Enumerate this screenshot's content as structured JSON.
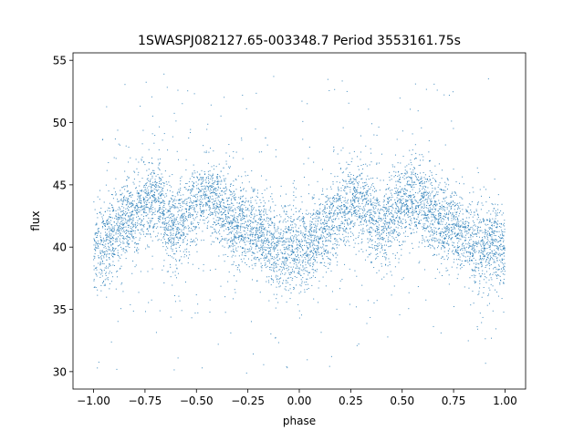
{
  "chart_data": {
    "type": "scatter",
    "title": "1SWASPJ082127.65-003348.7 Period 3553161.75s",
    "xlabel": "phase",
    "ylabel": "flux",
    "xlim": [
      -1.1,
      1.1
    ],
    "ylim": [
      28.6,
      55.6
    ],
    "x_ticks": [
      -1.0,
      -0.75,
      -0.5,
      -0.25,
      0.0,
      0.25,
      0.5,
      0.75,
      1.0
    ],
    "x_tick_labels": [
      "−1.00",
      "−0.75",
      "−0.50",
      "−0.25",
      "0.00",
      "0.25",
      "0.50",
      "0.75",
      "1.00"
    ],
    "y_ticks": [
      30,
      35,
      40,
      45,
      50,
      55
    ],
    "y_tick_labels": [
      "30",
      "35",
      "40",
      "45",
      "50",
      "55"
    ],
    "grid": false,
    "legend": "none",
    "point_color": "#1f77b4",
    "phase_profile": {
      "x": [
        0.0,
        0.05,
        0.1,
        0.15,
        0.2,
        0.25,
        0.3,
        0.35,
        0.4,
        0.45,
        0.5,
        0.55,
        0.6,
        0.65,
        0.7,
        0.75,
        0.8,
        0.85,
        0.9,
        0.95,
        1.0
      ],
      "median_flux": [
        40.0,
        40.2,
        41.0,
        42.0,
        42.5,
        43.5,
        44.0,
        42.5,
        41.5,
        42.5,
        43.5,
        44.0,
        43.5,
        42.5,
        42.0,
        41.5,
        41.0,
        40.5,
        40.0,
        40.0,
        40.0
      ]
    },
    "flux_range": [
      29.8,
      54.3
    ],
    "point_count_estimate": 7000
  }
}
